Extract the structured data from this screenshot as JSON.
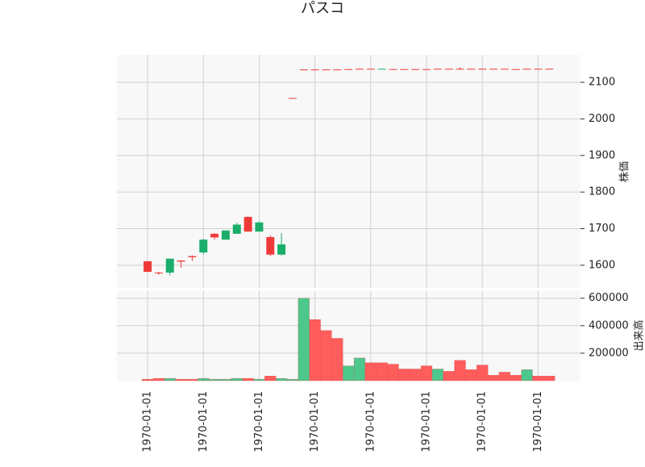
{
  "chart_data": {
    "type": "candlestick",
    "title": "パスコ",
    "price_label": "株価",
    "volume_label": "出来高",
    "x": [
      0,
      1,
      2,
      3,
      4,
      5,
      6,
      7,
      8,
      9,
      10,
      11,
      12,
      13,
      14,
      15,
      16,
      17,
      18,
      19,
      20,
      21,
      22,
      23,
      24,
      25,
      26,
      27,
      28,
      29,
      30,
      31,
      32,
      33,
      34,
      35,
      36
    ],
    "open": [
      1582,
      1578,
      1618,
      1610,
      1622,
      1670,
      1676,
      1695,
      1711,
      1692,
      1717,
      1629,
      1657,
      2055,
      2134,
      2134,
      2134,
      2134,
      2135,
      2136,
      2136,
      2137,
      2135,
      2135,
      2135,
      2135,
      2136,
      2136,
      2136,
      2136,
      2136,
      2136,
      2136,
      2135,
      2136,
      2136,
      2136
    ],
    "high": [
      1611,
      1582,
      1618,
      1614,
      1627,
      1672,
      1688,
      1695,
      1716,
      1734,
      1720,
      1682,
      1688,
      2057,
      2135,
      2135,
      2135,
      2135,
      2136,
      2138,
      2137,
      2137,
      2136,
      2136,
      2136,
      2136,
      2137,
      2137,
      2141,
      2137,
      2137,
      2137,
      2137,
      2136,
      2137,
      2137,
      2137
    ],
    "low": [
      1582,
      1574,
      1572,
      1593,
      1612,
      1630,
      1670,
      1670,
      1686,
      1692,
      1692,
      1625,
      1627,
      2055,
      2134,
      2134,
      2134,
      2134,
      2135,
      2136,
      2136,
      2135,
      2135,
      2135,
      2135,
      2135,
      2136,
      2136,
      2134,
      2136,
      2136,
      2136,
      2136,
      2135,
      2136,
      2136,
      2136
    ],
    "close": [
      1611,
      1580,
      1580,
      1613,
      1625,
      1635,
      1686,
      1670,
      1686,
      1732,
      1692,
      1677,
      1629,
      2057,
      2135,
      2135,
      2135,
      2135,
      2136,
      2137,
      2137,
      2135,
      2136,
      2136,
      2136,
      2136,
      2137,
      2137,
      2137,
      2137,
      2137,
      2137,
      2137,
      2136,
      2137,
      2137,
      2137
    ],
    "up_color": "#f03a3a",
    "down_color": "#1aae6a",
    "volume": [
      11000,
      17000,
      17000,
      11000,
      11000,
      17000,
      11000,
      11000,
      17000,
      17000,
      11000,
      34000,
      17000,
      11000,
      600000,
      445000,
      365000,
      308000,
      108000,
      165000,
      131000,
      131000,
      120000,
      85000,
      85000,
      108000,
      85000,
      68000,
      148000,
      80000,
      114000,
      40000,
      62000,
      40000,
      80000,
      34000,
      34000
    ],
    "volume_colors": [
      "#ff5c5c",
      "#ff5c5c",
      "#4cc88c",
      "#ff5c5c",
      "#ff5c5c",
      "#4cc88c",
      "#4cc88c",
      "#4cc88c",
      "#4cc88c",
      "#ff5c5c",
      "#4cc88c",
      "#ff5c5c",
      "#4cc88c",
      "#4cc88c",
      "#4cc88c",
      "#ff5c5c",
      "#ff5c5c",
      "#ff5c5c",
      "#4cc88c",
      "#4cc88c",
      "#ff5c5c",
      "#ff5c5c",
      "#ff5c5c",
      "#ff5c5c",
      "#ff5c5c",
      "#ff5c5c",
      "#4cc88c",
      "#ff5c5c",
      "#ff5c5c",
      "#ff5c5c",
      "#ff5c5c",
      "#ff5c5c",
      "#ff5c5c",
      "#ff5c5c",
      "#4cc88c",
      "#ff5c5c",
      "#ff5c5c"
    ],
    "xlim": [
      -2.75,
      38.8
    ],
    "xticks": [
      {
        "value": 0,
        "label": "1970-01-01"
      },
      {
        "value": 5,
        "label": "1970-01-01"
      },
      {
        "value": 10,
        "label": "1970-01-01"
      },
      {
        "value": 15,
        "label": "1970-01-01"
      },
      {
        "value": 20,
        "label": "1970-01-01"
      },
      {
        "value": 25,
        "label": "1970-01-01"
      },
      {
        "value": 30,
        "label": "1970-01-01"
      },
      {
        "value": 35,
        "label": "1970-01-01"
      }
    ],
    "ylim": [
      1538,
      2175
    ],
    "yticks": [
      1600,
      1700,
      1800,
      1900,
      2000,
      2100
    ],
    "y2lim": [
      -6000,
      657000
    ],
    "y2ticks": [
      200000,
      400000,
      600000
    ],
    "grid": true
  }
}
